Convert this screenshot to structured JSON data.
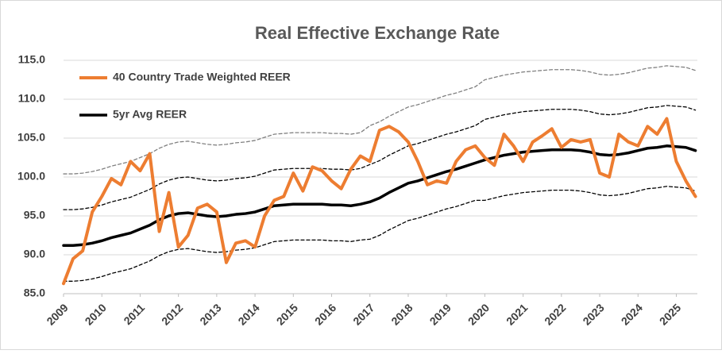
{
  "chart_data": {
    "type": "line",
    "title": "Real Effective Exchange Rate",
    "x": [
      2009,
      2009.25,
      2009.5,
      2009.75,
      2010,
      2010.25,
      2010.5,
      2010.75,
      2011,
      2011.25,
      2011.5,
      2011.75,
      2012,
      2012.25,
      2012.5,
      2012.75,
      2013,
      2013.25,
      2013.5,
      2013.75,
      2014,
      2014.25,
      2014.5,
      2014.75,
      2015,
      2015.25,
      2015.5,
      2015.75,
      2016,
      2016.25,
      2016.5,
      2016.75,
      2017,
      2017.25,
      2017.5,
      2017.75,
      2018,
      2018.25,
      2018.5,
      2018.75,
      2019,
      2019.25,
      2019.5,
      2019.75,
      2020,
      2020.25,
      2020.5,
      2020.75,
      2021,
      2021.25,
      2021.5,
      2021.75,
      2022,
      2022.25,
      2022.5,
      2022.75,
      2023,
      2023.25,
      2023.5,
      2023.75,
      2024,
      2024.25,
      2024.5,
      2024.75,
      2025,
      2025.25,
      2025.5
    ],
    "series": [
      {
        "name": "40 Country Trade Weighted REER",
        "color": "#ed7d31",
        "width": 4,
        "dash": false,
        "values": [
          86.3,
          89.5,
          90.5,
          95.5,
          97.5,
          99.8,
          99.0,
          102.0,
          100.8,
          103.0,
          93.0,
          98.0,
          91.0,
          92.5,
          96.0,
          96.5,
          95.5,
          89.0,
          91.5,
          91.8,
          91.0,
          95.0,
          97.0,
          97.5,
          100.5,
          98.2,
          101.3,
          100.8,
          99.5,
          98.5,
          101.0,
          102.7,
          102.0,
          106.0,
          106.5,
          105.8,
          104.5,
          102.0,
          99.0,
          99.5,
          99.2,
          102.0,
          103.5,
          104.0,
          102.5,
          101.5,
          105.5,
          104.0,
          102.0,
          104.5,
          105.3,
          106.2,
          103.8,
          104.8,
          104.5,
          104.8,
          100.5,
          100.0,
          105.5,
          104.5,
          104.0,
          106.5,
          105.5,
          107.5,
          102.0,
          99.5,
          97.5
        ]
      },
      {
        "name": "5yr Avg REER",
        "color": "#000000",
        "width": 3.5,
        "dash": false,
        "values": [
          91.2,
          91.2,
          91.3,
          91.5,
          91.8,
          92.2,
          92.5,
          92.8,
          93.3,
          93.8,
          94.5,
          95.0,
          95.3,
          95.4,
          95.2,
          95.0,
          94.9,
          95.0,
          95.2,
          95.3,
          95.5,
          95.9,
          96.3,
          96.4,
          96.5,
          96.5,
          96.5,
          96.5,
          96.4,
          96.4,
          96.3,
          96.5,
          96.8,
          97.3,
          98.0,
          98.6,
          99.2,
          99.5,
          99.9,
          100.3,
          100.7,
          101.0,
          101.4,
          101.8,
          102.2,
          102.5,
          102.8,
          103.0,
          103.2,
          103.3,
          103.4,
          103.5,
          103.5,
          103.5,
          103.4,
          103.2,
          102.9,
          102.8,
          102.9,
          103.1,
          103.4,
          103.7,
          103.8,
          104.0,
          103.9,
          103.8,
          103.4
        ]
      },
      {
        "color": "#000000",
        "width": 1.3,
        "dash": true,
        "values": [
          95.8,
          95.8,
          95.9,
          96.1,
          96.4,
          96.8,
          97.1,
          97.4,
          97.9,
          98.4,
          99.1,
          99.6,
          99.9,
          100.0,
          99.8,
          99.6,
          99.5,
          99.6,
          99.8,
          99.9,
          100.1,
          100.5,
          100.9,
          101.0,
          101.1,
          101.1,
          101.1,
          101.1,
          101.0,
          101.0,
          100.9,
          101.1,
          101.6,
          102.1,
          102.8,
          103.4,
          104.0,
          104.3,
          104.7,
          105.1,
          105.5,
          105.8,
          106.2,
          106.6,
          107.4,
          107.7,
          108.0,
          108.2,
          108.4,
          108.5,
          108.6,
          108.7,
          108.7,
          108.7,
          108.6,
          108.4,
          108.1,
          108.0,
          108.1,
          108.3,
          108.6,
          108.9,
          109.0,
          109.2,
          109.1,
          109.0,
          108.6
        ]
      },
      {
        "color": "#000000",
        "width": 1.3,
        "dash": true,
        "values": [
          86.6,
          86.6,
          86.7,
          86.9,
          87.2,
          87.6,
          87.9,
          88.2,
          88.7,
          89.2,
          89.9,
          90.4,
          90.7,
          90.8,
          90.6,
          90.4,
          90.3,
          90.4,
          90.6,
          90.7,
          90.9,
          91.3,
          91.7,
          91.8,
          91.9,
          91.9,
          91.9,
          91.9,
          91.8,
          91.8,
          91.7,
          91.9,
          92.0,
          92.5,
          93.2,
          93.8,
          94.4,
          94.7,
          95.1,
          95.5,
          95.9,
          96.2,
          96.6,
          97.0,
          97.0,
          97.3,
          97.6,
          97.8,
          98.0,
          98.1,
          98.2,
          98.3,
          98.3,
          98.3,
          98.2,
          98.0,
          97.7,
          97.6,
          97.7,
          97.9,
          98.2,
          98.5,
          98.6,
          98.8,
          98.7,
          98.6,
          98.2
        ]
      },
      {
        "color": "#808080",
        "width": 1.3,
        "dash": true,
        "values": [
          100.4,
          100.4,
          100.5,
          100.7,
          101.0,
          101.4,
          101.7,
          102.0,
          102.5,
          103.0,
          103.7,
          104.2,
          104.5,
          104.6,
          104.4,
          104.2,
          104.1,
          104.2,
          104.4,
          104.5,
          104.7,
          105.1,
          105.5,
          105.6,
          105.7,
          105.7,
          105.7,
          105.7,
          105.6,
          105.6,
          105.5,
          105.7,
          106.6,
          107.1,
          107.8,
          108.4,
          109.0,
          109.3,
          109.7,
          110.1,
          110.5,
          110.8,
          111.2,
          111.6,
          112.5,
          112.8,
          113.1,
          113.3,
          113.5,
          113.6,
          113.7,
          113.8,
          113.8,
          113.8,
          113.7,
          113.5,
          113.2,
          113.1,
          113.2,
          113.4,
          113.7,
          114.0,
          114.1,
          114.3,
          114.2,
          114.1,
          113.7
        ]
      }
    ],
    "xlim": [
      2009,
      2025.55
    ],
    "xticks": [
      2009,
      2010,
      2011,
      2012,
      2013,
      2014,
      2015,
      2016,
      2017,
      2018,
      2019,
      2020,
      2021,
      2022,
      2023,
      2024,
      2025
    ],
    "ylim": [
      85,
      115
    ],
    "yticks": [
      {
        "value": 85,
        "label": "85.0"
      },
      {
        "value": 90,
        "label": "90.0"
      },
      {
        "value": 95,
        "label": "95.0"
      },
      {
        "value": 100,
        "label": "100.0"
      },
      {
        "value": 105,
        "label": "105.0"
      },
      {
        "value": 110,
        "label": "110.0"
      },
      {
        "value": 115,
        "label": "115.0"
      }
    ],
    "grid": true,
    "legend": "top-left"
  }
}
